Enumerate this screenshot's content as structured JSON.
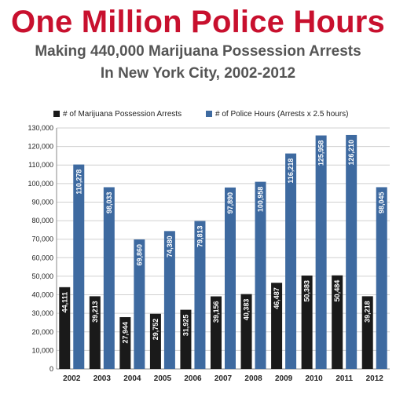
{
  "header": {
    "title": "One Million Police Hours",
    "subtitle_line1": "Making 440,000 Marijuana Possession Arrests",
    "subtitle_line2": "In New York City, 2002-2012"
  },
  "colors": {
    "title": "#c8102e",
    "arrests": "#1a1a1a",
    "hours": "#3e6aa0"
  },
  "chart_data": {
    "type": "bar",
    "title": "One Million Police Hours",
    "subtitle": "Making 440,000 Marijuana Possession Arrests In New York City, 2002-2012",
    "legend_position": "top",
    "grid": true,
    "ylim": [
      0,
      130000
    ],
    "yticks": [
      "0",
      "10,000",
      "20,000",
      "30,000",
      "40,000",
      "50,000",
      "60,000",
      "70,000",
      "80,000",
      "90,000",
      "100,000",
      "110,000",
      "120,000",
      "130,000"
    ],
    "categories": [
      "2002",
      "2003",
      "2004",
      "2005",
      "2006",
      "2007",
      "2008",
      "2009",
      "2010",
      "2011",
      "2012"
    ],
    "series": [
      {
        "name": "# of Marijuana Possession Arrests",
        "values": [
          44111,
          39213,
          27944,
          29752,
          31925,
          39156,
          40383,
          46487,
          50383,
          50484,
          39218
        ],
        "labels": [
          "44,111",
          "39,213",
          "27,944",
          "29,752",
          "31,925",
          "39,156",
          "40,383",
          "46,487",
          "50,383",
          "50,484",
          "39,218"
        ]
      },
      {
        "name": "# of Police Hours (Arrests x 2.5 hours)",
        "values": [
          110278,
          98033,
          69860,
          74380,
          79813,
          97890,
          100958,
          116218,
          125958,
          126210,
          98045
        ],
        "labels": [
          "110,278",
          "98,033",
          "69,860",
          "74,380",
          "79,813",
          "97,890",
          "100,958",
          "116,218",
          "125,958",
          "126,210",
          "98,045"
        ]
      }
    ]
  }
}
